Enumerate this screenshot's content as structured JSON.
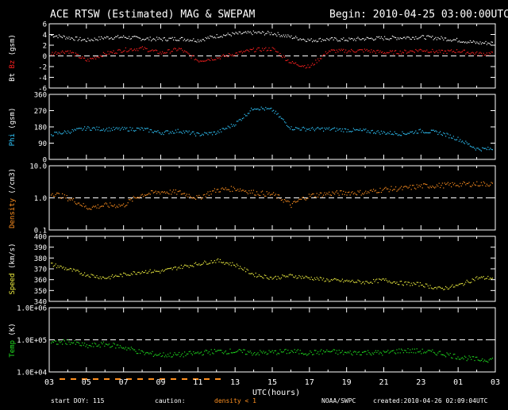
{
  "header": {
    "title": "ACE RTSW (Estimated) MAG & SWEPAM",
    "begin": "Begin: 2010-04-25 03:00:00UTC"
  },
  "footer": {
    "start_doy": "start DOY: 115",
    "caution": "caution:",
    "density_note": "density < 1",
    "credit": "NOAA/SWPC",
    "created": "created:2010-04-26 02:09:04UTC"
  },
  "xaxis": {
    "label": "UTC(hours)",
    "ticks": [
      "03",
      "05",
      "07",
      "09",
      "11",
      "13",
      "15",
      "17",
      "19",
      "21",
      "23",
      "01",
      "03"
    ]
  },
  "colors": {
    "bt": "#ffffff",
    "bz": "#ff2020",
    "phi": "#30c8ff",
    "density": "#ff9020",
    "speed": "#f0f040",
    "temp": "#20e020",
    "caution": "#ff9020",
    "frame": "#ffffff"
  },
  "chart_data": [
    {
      "type": "scatter",
      "title": "Bt / Bz",
      "ylabel_parts": [
        "Bt",
        "Bz",
        "(gsm)"
      ],
      "ylim": [
        -6,
        6
      ],
      "yticks": [
        "6",
        "4",
        "2",
        "0",
        "-2",
        "-4",
        "-6"
      ],
      "reference_line": 0,
      "series": [
        {
          "name": "Bt",
          "x": [
            0,
            1,
            2,
            3,
            4,
            5,
            6,
            7,
            8,
            9,
            10,
            11,
            12,
            13,
            14,
            15,
            16,
            17,
            18,
            19,
            20,
            21,
            22,
            23
          ],
          "values": [
            4.0,
            3.5,
            3.0,
            3.5,
            3.6,
            3.3,
            3.2,
            3.3,
            3.0,
            3.8,
            4.2,
            4.4,
            4.3,
            3.6,
            3.0,
            3.2,
            3.1,
            3.3,
            3.4,
            3.5,
            3.6,
            3.4,
            3.0,
            2.5
          ]
        },
        {
          "name": "Bz",
          "x": [
            0,
            1,
            2,
            3,
            4,
            5,
            6,
            7,
            8,
            9,
            10,
            11,
            12,
            13,
            14,
            15,
            16,
            17,
            18,
            19,
            20,
            21,
            22,
            23
          ],
          "values": [
            0.5,
            1.0,
            -0.8,
            0.5,
            1.2,
            1.5,
            0.6,
            1.4,
            -0.8,
            -0.3,
            0.5,
            1.2,
            1.4,
            -1.2,
            -2.0,
            1.0,
            1.0,
            1.1,
            0.7,
            0.8,
            1.2,
            0.8,
            1.0,
            0.5
          ]
        }
      ]
    },
    {
      "type": "scatter",
      "title": "Phi",
      "ylabel_parts": [
        "Phi",
        "(gsm)"
      ],
      "ylim": [
        0,
        360
      ],
      "yticks": [
        "360",
        "270",
        "180",
        "90",
        "0"
      ],
      "series": [
        {
          "name": "Phi",
          "x": [
            0,
            1,
            2,
            3,
            4,
            5,
            6,
            7,
            8,
            9,
            10,
            11,
            12,
            13,
            14,
            15,
            16,
            17,
            18,
            19,
            20,
            21,
            22,
            23
          ],
          "values": [
            140,
            155,
            175,
            170,
            170,
            170,
            150,
            160,
            140,
            150,
            200,
            290,
            275,
            175,
            170,
            170,
            165,
            160,
            150,
            145,
            160,
            150,
            115,
            60
          ]
        }
      ]
    },
    {
      "type": "scatter",
      "title": "Density",
      "ylabel_parts": [
        "Density",
        "(/cm3)"
      ],
      "scale": "log",
      "ylim": [
        0.1,
        10.0
      ],
      "yticks": [
        "10.0",
        "1.0",
        "0.1"
      ],
      "reference_line": 1.0,
      "series": [
        {
          "name": "Density",
          "x": [
            0,
            1,
            2,
            3,
            4,
            5,
            6,
            7,
            8,
            9,
            10,
            11,
            12,
            13,
            14,
            15,
            16,
            17,
            18,
            19,
            20,
            21,
            22,
            23
          ],
          "values": [
            1.5,
            1.0,
            0.5,
            0.6,
            0.6,
            1.3,
            1.6,
            1.5,
            1.0,
            1.8,
            2.0,
            1.5,
            1.3,
            0.6,
            1.2,
            1.4,
            1.5,
            1.5,
            1.9,
            2.0,
            2.4,
            2.5,
            2.7,
            2.8
          ]
        }
      ]
    },
    {
      "type": "scatter",
      "title": "Speed",
      "ylabel_parts": [
        "Speed",
        "(km/s)"
      ],
      "ylim": [
        340,
        400
      ],
      "yticks": [
        "400",
        "390",
        "380",
        "370",
        "360",
        "350",
        "340"
      ],
      "series": [
        {
          "name": "Speed",
          "x": [
            0,
            1,
            2,
            3,
            4,
            5,
            6,
            7,
            8,
            9,
            10,
            11,
            12,
            13,
            14,
            15,
            16,
            17,
            18,
            19,
            20,
            21,
            22,
            23
          ],
          "values": [
            375,
            370,
            365,
            362,
            365,
            368,
            368,
            372,
            375,
            378,
            374,
            365,
            362,
            364,
            362,
            360,
            359,
            358,
            360,
            357,
            356,
            352,
            355,
            362
          ]
        }
      ]
    },
    {
      "type": "scatter",
      "title": "Temp",
      "ylabel_parts": [
        "Temp",
        "(K)"
      ],
      "scale": "log",
      "ylim": [
        10000,
        1000000
      ],
      "yticks": [
        "1.0E+06",
        "1.0E+05",
        "1.0E+04"
      ],
      "reference_line": 100000,
      "series": [
        {
          "name": "Temp",
          "x": [
            0,
            1,
            2,
            3,
            4,
            5,
            6,
            7,
            8,
            9,
            10,
            11,
            12,
            13,
            14,
            15,
            16,
            17,
            18,
            19,
            20,
            21,
            22,
            23
          ],
          "values": [
            80000,
            90000,
            65000,
            75000,
            60000,
            40000,
            35000,
            35000,
            40000,
            45000,
            45000,
            40000,
            42000,
            45000,
            40000,
            45000,
            40000,
            42000,
            40000,
            48000,
            45000,
            40000,
            30000,
            25000
          ]
        }
      ]
    }
  ]
}
